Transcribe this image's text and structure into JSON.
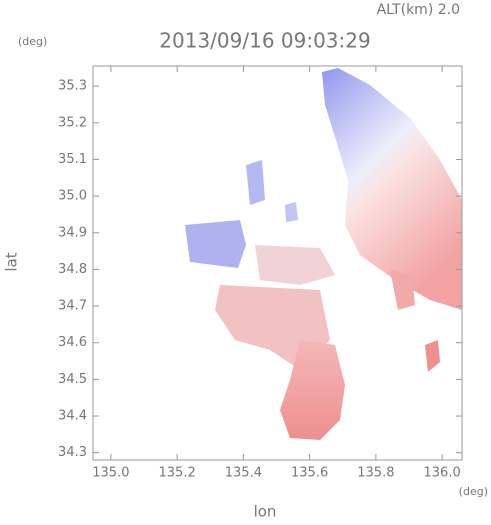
{
  "chart_data": {
    "type": "map",
    "title": "2013/09/16 09:03:29",
    "subtitle": "ALT(km) 2.0",
    "y_unit": "(deg)",
    "x_unit": "(deg)",
    "xlabel": "lon",
    "ylabel": "lat",
    "xlim": [
      134.946,
      136.06
    ],
    "ylim": [
      34.28,
      35.355
    ],
    "xticks": [
      {
        "value": 135.0,
        "label": "135.0"
      },
      135.2,
      135.4,
      135.6,
      135.8,
      {
        "value": 136.0,
        "label": "136.0"
      }
    ],
    "yticks": [
      35.3,
      35.2,
      35.1,
      {
        "value": 35.0,
        "label": "35.0"
      },
      34.9,
      34.8,
      34.7,
      34.6,
      34.5,
      34.4,
      34.3
    ]
  }
}
